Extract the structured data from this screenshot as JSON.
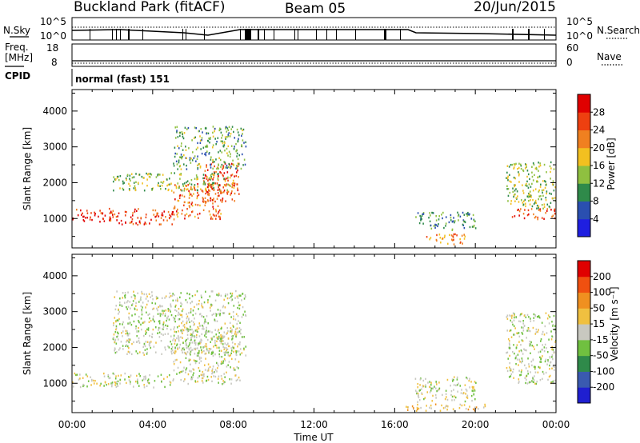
{
  "header": {
    "site": "Buckland Park (fitACF)",
    "beam": "Beam 05",
    "date": "20/Jun/2015"
  },
  "noise_panel": {
    "left_label": "N.Sky",
    "right_label": "N.Search",
    "left_ticks": [
      "10^5",
      "10^0"
    ],
    "right_ticks": [
      "10^5",
      "10^0"
    ]
  },
  "freq_panel": {
    "left_label_1": "Freq.",
    "left_label_2": "[MHz]",
    "right_label": "Nave",
    "left_ticks": [
      "18",
      "8"
    ],
    "right_ticks": [
      "60",
      "0"
    ]
  },
  "cpid": {
    "label": "CPID",
    "text": "normal (fast) 151"
  },
  "power_panel": {
    "ylabel": "Slant Range [km]",
    "yticks": [
      "1000",
      "2000",
      "3000",
      "4000"
    ],
    "colorbar_label": "Power [dB]",
    "colorbar_ticks": [
      "4",
      "8",
      "12",
      "16",
      "20",
      "24",
      "28"
    ],
    "colors": [
      "#1f1fe0",
      "#2a4fb0",
      "#2f8a4a",
      "#8fc040",
      "#f2c020",
      "#f08020",
      "#ee4010",
      "#e00000"
    ]
  },
  "velocity_panel": {
    "ylabel": "Slant Range [km]",
    "yticks": [
      "1000",
      "2000",
      "3000",
      "4000"
    ],
    "colorbar_label": "Velocity [m s⁻¹]",
    "colorbar_ticks": [
      "200",
      "100",
      "50",
      "15",
      "-15",
      "-50",
      "-100",
      "-200"
    ],
    "colors": [
      "#1f1fd0",
      "#3a5ab0",
      "#2f8a4a",
      "#70c040",
      "#c8c8c0",
      "#f0c040",
      "#f09020",
      "#f05010",
      "#e00000"
    ]
  },
  "xaxis": {
    "label": "Time UT",
    "ticks": [
      "00:00",
      "04:00",
      "08:00",
      "12:00",
      "16:00",
      "20:00",
      "00:00"
    ]
  },
  "chart_data": [
    {
      "type": "heatmap",
      "title": "Power",
      "xlabel": "Time UT",
      "ylabel": "Slant Range [km]",
      "x_range_hours": [
        0,
        24
      ],
      "ylim": [
        180,
        4600
      ],
      "colorbar_range": [
        0,
        32
      ],
      "scatter_regions": [
        {
          "t0": 0.0,
          "t1": 2.3,
          "r0": 900,
          "r1": 1300,
          "power": 28
        },
        {
          "t0": 2.3,
          "t1": 5.0,
          "r0": 850,
          "r1": 1300,
          "power": 26
        },
        {
          "t0": 5.0,
          "t1": 7.5,
          "r0": 1000,
          "r1": 2000,
          "power": 24
        },
        {
          "t0": 6.5,
          "t1": 8.3,
          "r0": 1500,
          "r1": 2600,
          "power": 26
        },
        {
          "t0": 2.0,
          "t1": 8.0,
          "r0": 1800,
          "r1": 2300,
          "power": 14
        },
        {
          "t0": 5.0,
          "t1": 8.6,
          "r0": 2400,
          "r1": 3600,
          "power": 12
        },
        {
          "t0": 17.0,
          "t1": 20.0,
          "r0": 700,
          "r1": 1200,
          "power": 10
        },
        {
          "t0": 17.5,
          "t1": 19.5,
          "r0": 300,
          "r1": 600,
          "power": 22
        },
        {
          "t0": 21.8,
          "t1": 24.0,
          "r0": 1000,
          "r1": 1300,
          "power": 26
        },
        {
          "t0": 21.5,
          "t1": 24.0,
          "r0": 1300,
          "r1": 2600,
          "power": 14
        }
      ]
    },
    {
      "type": "heatmap",
      "title": "Velocity",
      "xlabel": "Time UT",
      "ylabel": "Slant Range [km]",
      "x_range_hours": [
        0,
        24
      ],
      "ylim": [
        180,
        4600
      ],
      "colorbar_range": [
        -250,
        250
      ],
      "scatter_regions": [
        {
          "t0": 0.0,
          "t1": 5.0,
          "r0": 900,
          "r1": 1300,
          "velocity": 0
        },
        {
          "t0": 5.0,
          "t1": 8.3,
          "r0": 1000,
          "r1": 2600,
          "velocity": 0
        },
        {
          "t0": 2.0,
          "t1": 8.6,
          "r0": 1800,
          "r1": 3600,
          "velocity": 5
        },
        {
          "t0": 16.5,
          "t1": 20.5,
          "r0": 250,
          "r1": 450,
          "velocity": -30
        },
        {
          "t0": 17.0,
          "t1": 20.0,
          "r0": 500,
          "r1": 1200,
          "velocity": 0
        },
        {
          "t0": 21.5,
          "t1": 24.0,
          "r0": 1000,
          "r1": 3000,
          "velocity": 5
        }
      ]
    }
  ]
}
